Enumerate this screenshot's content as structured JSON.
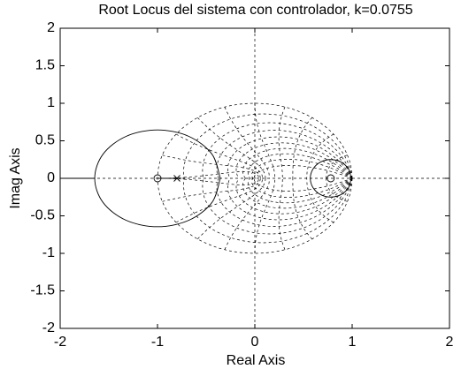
{
  "chart_data": {
    "type": "rlocus",
    "title": "Root Locus del sistema con controlador, k=0.0755",
    "xlabel": "Real Axis",
    "ylabel": "Imag Axis",
    "xlim": [
      -2,
      2
    ],
    "ylim": [
      -2,
      2
    ],
    "xticks": [
      -2,
      -1,
      0,
      1,
      2
    ],
    "yticks": [
      -2,
      -1.5,
      -1,
      -0.5,
      0,
      0.5,
      1,
      1.5,
      2
    ],
    "zgrid": true,
    "color": "#000000",
    "series": [
      {
        "x": [
          -0.355,
          -0.441,
          -0.678,
          -1,
          -1.323,
          -1.559,
          -1.645,
          -1.559,
          -1.323,
          -1,
          -0.678,
          -0.441,
          -0.355
        ],
        "y": [
          0,
          0.323,
          0.559,
          0.645,
          0.559,
          0.323,
          0,
          -0.323,
          -0.559,
          -0.645,
          -0.559,
          -0.323,
          0
        ]
      },
      {
        "x": [
          0.99,
          0.962,
          0.885,
          0.78,
          0.675,
          0.598,
          0.57,
          0.598,
          0.675,
          0.78,
          0.885,
          0.962,
          0.99
        ],
        "y": [
          0,
          0.125,
          0.217,
          0.25,
          0.217,
          0.125,
          0,
          -0.125,
          -0.217,
          -0.25,
          -0.217,
          -0.125,
          0
        ]
      },
      {
        "x": [
          -2,
          -1.645
        ],
        "y": [
          0,
          0
        ]
      },
      {
        "x": [
          -1,
          -0.8
        ],
        "y": [
          0,
          0
        ]
      }
    ],
    "zeros": {
      "x": [
        -1,
        0.78
      ],
      "y": [
        0,
        0
      ]
    },
    "poles": {
      "x": [
        -0.8
      ],
      "y": [
        0
      ]
    }
  }
}
